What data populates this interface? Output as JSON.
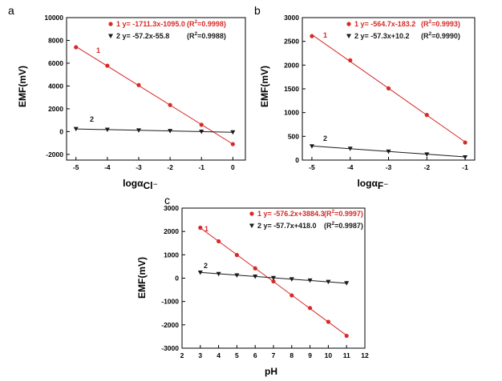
{
  "chart_data": [
    {
      "panel": "a",
      "type": "line",
      "ylabel": "EMF(mV)",
      "xlabel_main": "logα",
      "xlabel_sub": "Cl⁻",
      "xlim": [
        -5.3,
        0.4
      ],
      "ylim": [
        -2500,
        10000
      ],
      "xticks": [
        -5,
        -4,
        -3,
        -2,
        -1,
        0
      ],
      "yticks": [
        -2000,
        0,
        2000,
        4000,
        6000,
        8000,
        10000
      ],
      "series": [
        {
          "name": "1",
          "color": "#d62a27",
          "marker": "circle",
          "x": [
            -5,
            -4,
            -3,
            -2,
            -1,
            0
          ],
          "y": [
            7400,
            5780,
            4080,
            2330,
            600,
            -1100
          ],
          "fit": {
            "slope": -1711.3,
            "intercept": -1095.0
          },
          "legend_eq": "1 y= -1711.3x-1095.0",
          "legend_r2": "(R",
          "legend_r2_sup": "2",
          "legend_r2_val": "=0.9998)"
        },
        {
          "name": "2",
          "color": "#1a1a1a",
          "marker": "triangle-down",
          "x": [
            -5,
            -4,
            -3,
            -2,
            -1,
            0
          ],
          "y": [
            230,
            170,
            110,
            55,
            -10,
            -60
          ],
          "fit": {
            "slope": -57.2,
            "intercept": -55.8
          },
          "legend_eq": "2 y= -57.2x-55.8",
          "legend_r2": "(R",
          "legend_r2_sup": "2",
          "legend_r2_val": "=0.9988)"
        }
      ]
    },
    {
      "panel": "b",
      "type": "line",
      "ylabel": "EMF(mV)",
      "xlabel_main": "logα",
      "xlabel_sub": "F⁻",
      "xlim": [
        -5.25,
        -0.75
      ],
      "ylim": [
        0,
        3000
      ],
      "xticks": [
        -5,
        -4,
        -3,
        -2,
        -1
      ],
      "yticks": [
        0,
        500,
        1000,
        1500,
        2000,
        2500,
        3000
      ],
      "series": [
        {
          "name": "1",
          "color": "#d62a27",
          "marker": "circle",
          "x": [
            -5,
            -4,
            -3,
            -2,
            -1
          ],
          "y": [
            2610,
            2100,
            1510,
            950,
            370
          ],
          "fit": {
            "slope": -564.7,
            "intercept": -183.2
          },
          "legend_eq": "1 y= -564.7x-183.2",
          "legend_r2": "(R",
          "legend_r2_sup": "2",
          "legend_r2_val": "=0.9993)"
        },
        {
          "name": "2",
          "color": "#1a1a1a",
          "marker": "triangle-down",
          "x": [
            -5,
            -4,
            -3,
            -2,
            -1
          ],
          "y": [
            290,
            240,
            180,
            120,
            60
          ],
          "fit": {
            "slope": -57.3,
            "intercept": 10.2
          },
          "legend_eq": "2 y= -57.3x+10.2",
          "legend_r2": "(R",
          "legend_r2_sup": "2",
          "legend_r2_val": "=0.9990)"
        }
      ]
    },
    {
      "panel": "c",
      "type": "line",
      "ylabel": "EMF(mV)",
      "xlabel_main": "pH",
      "xlabel_sub": "",
      "xlim": [
        2,
        12
      ],
      "ylim": [
        -3000,
        3000
      ],
      "xticks": [
        2,
        3,
        4,
        5,
        6,
        7,
        8,
        9,
        10,
        11,
        12
      ],
      "yticks": [
        -3000,
        -2000,
        -1000,
        0,
        1000,
        2000,
        3000
      ],
      "series": [
        {
          "name": "1",
          "color": "#d62a27",
          "marker": "circle",
          "x": [
            3,
            4,
            5,
            6,
            7,
            8,
            9,
            10,
            11
          ],
          "y": [
            2160,
            1580,
            990,
            420,
            -140,
            -740,
            -1280,
            -1870,
            -2470
          ],
          "fit": {
            "slope": -576.2,
            "intercept": 3884.3
          },
          "legend_eq": "1 y= -576.2x+3884.3",
          "legend_r2": "(R",
          "legend_r2_sup": "2",
          "legend_r2_val": "=0.9997)"
        },
        {
          "name": "2",
          "color": "#1a1a1a",
          "marker": "triangle-down",
          "x": [
            3,
            4,
            5,
            6,
            7,
            8,
            9,
            10,
            11
          ],
          "y": [
            240,
            180,
            120,
            70,
            10,
            -45,
            -100,
            -160,
            -215
          ],
          "fit": {
            "slope": -57.7,
            "intercept": 418.0
          },
          "legend_eq": "2 y= -57.7x+418.0",
          "legend_r2": "(R",
          "legend_r2_sup": "2",
          "legend_r2_val": "=0.9987)"
        }
      ]
    }
  ]
}
